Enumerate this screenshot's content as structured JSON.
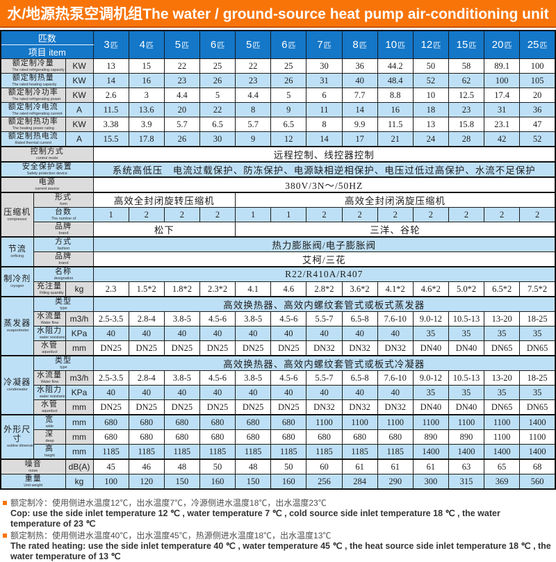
{
  "title": "水/地源热泵空调机组The water / ground-source heat pump air-conditioning unit",
  "colors": {
    "title_bg": "#f87409",
    "header_bg": "#1477c8",
    "row_shade_bg": "#bee0f6",
    "label_bg": "#dcdcdc",
    "accent_orange": "#f87409"
  },
  "header": {
    "corner_top": "匹数",
    "corner_bottom": "项目 item",
    "columns": [
      "3匹",
      "4匹",
      "5匹",
      "6匹",
      "5匹",
      "6匹",
      "7匹",
      "8匹",
      "10匹",
      "12匹",
      "15匹",
      "20匹",
      "25匹"
    ]
  },
  "rows": [
    {
      "label": {
        "zh": "额定制冷量",
        "en": "The rated refrigerating capacity"
      },
      "layout": "wide",
      "unit": "KW",
      "shade": false,
      "cells": [
        "13",
        "15",
        "22",
        "25",
        "22",
        "25",
        "30",
        "36",
        "44.2",
        "50",
        "58",
        "89.1",
        "100"
      ]
    },
    {
      "label": {
        "zh": "额定制热量",
        "en": "The rated heating capacity"
      },
      "layout": "wide",
      "unit": "KW",
      "shade": true,
      "cells": [
        "14",
        "16",
        "23",
        "26",
        "23",
        "26",
        "31",
        "40",
        "48.4",
        "52",
        "62",
        "100",
        "105"
      ]
    },
    {
      "label": {
        "zh": "额定制冷功率",
        "en": "The rated refrigerating power"
      },
      "layout": "wide",
      "unit": "KW",
      "shade": false,
      "cells": [
        "2.6",
        "3",
        "4.4",
        "5",
        "4.4",
        "5",
        "6",
        "7.7",
        "8.8",
        "10",
        "12.5",
        "17.4",
        "20"
      ]
    },
    {
      "label": {
        "zh": "额定制冷电流",
        "en": "The rated refrigerating current"
      },
      "layout": "wide",
      "unit": "A",
      "shade": true,
      "cells": [
        "11.5",
        "13.6",
        "20",
        "22",
        "8",
        "9",
        "11",
        "14",
        "16",
        "18",
        "23",
        "31",
        "36"
      ]
    },
    {
      "label": {
        "zh": "额定制热功率",
        "en": "The heating power rating"
      },
      "layout": "wide",
      "unit": "KW",
      "shade": false,
      "cells": [
        "3.38",
        "3.9",
        "5.7",
        "6.5",
        "5.7",
        "6.5",
        "8",
        "9.9",
        "11.5",
        "13",
        "15.8",
        "23.1",
        "47"
      ]
    },
    {
      "label": {
        "zh": "额定制热电流",
        "en": "Rated thermal current"
      },
      "layout": "wide",
      "unit": "A",
      "shade": true,
      "cells": [
        "15.5",
        "17.8",
        "26",
        "30",
        "9",
        "12",
        "14",
        "17",
        "21",
        "24",
        "28",
        "42",
        "52"
      ]
    },
    {
      "label": {
        "zh": "控制方式",
        "en": "control mode"
      },
      "layout": "full",
      "shade": false,
      "spans": [
        {
          "text": "远程控制、线控器控制",
          "cols": 13
        }
      ]
    },
    {
      "label": {
        "zh": "安全保护装置",
        "en": "Safety protection device"
      },
      "layout": "full",
      "shade": true,
      "spans": [
        {
          "text": "系统高低压　电流过载保护、防冻保护、电源缺相逆相保护、电压过低过高保护、水流不足保护",
          "cols": 13
        }
      ]
    },
    {
      "label": {
        "zh": "电源",
        "en": "current source"
      },
      "layout": "full",
      "shade": false,
      "spans": [
        {
          "text": "380V/3N～/50HZ",
          "cols": 13
        }
      ]
    },
    {
      "group": {
        "zh": "压缩机",
        "en": "compressor",
        "rows": 3
      },
      "label": {
        "zh": "形式",
        "en": "form"
      },
      "layout": "subwide",
      "shade": false,
      "spans": [
        {
          "text": "高效全封闭旋转压缩机",
          "cols": 4
        },
        {
          "text": "高效全封闭涡旋压缩机",
          "cols": 9
        }
      ]
    },
    {
      "label": {
        "zh": "台数",
        "en": "The number of"
      },
      "layout": "subwide",
      "shade": true,
      "cells": [
        "1",
        "2",
        "2",
        "2",
        "1",
        "1",
        "2",
        "2",
        "2",
        "2",
        "2",
        "2",
        "2"
      ]
    },
    {
      "label": {
        "zh": "品牌",
        "en": "brand"
      },
      "layout": "subwide",
      "shade": false,
      "spans": [
        {
          "text": "松下",
          "cols": 4
        },
        {
          "text": "三洋、谷轮",
          "cols": 9
        }
      ]
    },
    {
      "group": {
        "zh": "节流",
        "en": "orificing",
        "rows": 2
      },
      "label": {
        "zh": "方式",
        "en": "fashion"
      },
      "layout": "subwide",
      "shade": true,
      "spans": [
        {
          "text": "热力膨胀阀/电子膨胀阀",
          "cols": 13
        }
      ]
    },
    {
      "label": {
        "zh": "品牌",
        "en": "brand"
      },
      "layout": "subwide",
      "shade": false,
      "spans": [
        {
          "text": "艾柯/三花",
          "cols": 13
        }
      ]
    },
    {
      "group": {
        "zh": "制冷剂",
        "en": "cryogen",
        "rows": 2
      },
      "label": {
        "zh": "名称",
        "en": "designation"
      },
      "layout": "subwide",
      "shade": true,
      "spans": [
        {
          "text": "R22/R410A/R407",
          "cols": 13
        }
      ]
    },
    {
      "label": {
        "zh": "充注量",
        "en": "Filling quantity"
      },
      "layout": "sub",
      "unit": "kg",
      "shade": false,
      "cells": [
        "2.3",
        "1.5*2",
        "1.8*2",
        "2.3*2",
        "4.1",
        "4.6",
        "2.8*2",
        "3.6*2",
        "4.1*2",
        "4.6*2",
        "5.0*2",
        "6.5*2",
        "7.5*2"
      ]
    },
    {
      "group": {
        "zh": "蒸发器",
        "en": "evaporimeter",
        "rows": 4
      },
      "label": {
        "zh": "类型",
        "en": "type"
      },
      "layout": "subwide",
      "shade": true,
      "spans": [
        {
          "text": "高效换热器、高效内螺纹套管式或板式蒸发器",
          "cols": 13
        }
      ]
    },
    {
      "label": {
        "zh": "水流量",
        "en": "Water flow"
      },
      "layout": "sub",
      "unit": "m3/h",
      "shade": false,
      "cells": [
        "2.5-3.5",
        "2.8-4",
        "3.8-5",
        "4.5-6",
        "3.8-5",
        "4.5-6",
        "5.5-7",
        "6.5-8",
        "7.6-10",
        "9.0-12",
        "10.5-13",
        "13-20",
        "18-25"
      ]
    },
    {
      "label": {
        "zh": "水阻力",
        "en": "water resistance"
      },
      "layout": "sub",
      "unit": "KPa",
      "shade": true,
      "cells": [
        "40",
        "40",
        "40",
        "40",
        "40",
        "40",
        "40",
        "40",
        "40",
        "35",
        "35",
        "35",
        "35"
      ]
    },
    {
      "label": {
        "zh": "水管",
        "en": "aqueduct"
      },
      "layout": "sub",
      "unit": "mm",
      "shade": false,
      "cells": [
        "DN25",
        "DN25",
        "DN25",
        "DN25",
        "DN25",
        "DN25",
        "DN32",
        "DN32",
        "DN32",
        "DN40",
        "DN40",
        "DN65",
        "DN65"
      ]
    },
    {
      "group": {
        "zh": "冷凝器",
        "en": "condensator",
        "rows": 4
      },
      "label": {
        "zh": "类型",
        "en": "type"
      },
      "layout": "subwide",
      "shade": true,
      "spans": [
        {
          "text": "高效换热器、高效内螺纹套管式或板式冷凝器",
          "cols": 13
        }
      ]
    },
    {
      "label": {
        "zh": "水流量",
        "en": "Water flow"
      },
      "layout": "sub",
      "unit": "m3/h",
      "shade": false,
      "cells": [
        "2.5-3.5",
        "2.8-4",
        "3.8-5",
        "4.5-6",
        "3.8-5",
        "4.5-6",
        "5.5-7",
        "6.5-8",
        "7.6-10",
        "9.0-12",
        "10.5-13",
        "13-20",
        "18-25"
      ]
    },
    {
      "label": {
        "zh": "水阻力",
        "en": "water resistance"
      },
      "layout": "sub",
      "unit": "KPa",
      "shade": true,
      "cells": [
        "40",
        "40",
        "40",
        "40",
        "40",
        "40",
        "40",
        "40",
        "40",
        "35",
        "35",
        "35",
        "35"
      ]
    },
    {
      "label": {
        "zh": "水管",
        "en": "aqueduct"
      },
      "layout": "sub",
      "unit": "mm",
      "shade": false,
      "cells": [
        "DN25",
        "DN25",
        "DN25",
        "DN25",
        "DN25",
        "DN25",
        "DN32",
        "DN32",
        "DN32",
        "DN40",
        "DN40",
        "DN65",
        "DN65"
      ]
    },
    {
      "group": {
        "zh": "外形尺寸",
        "en": "outline dimension",
        "rows": 3
      },
      "label": {
        "zh": "宽",
        "en": "wide"
      },
      "layout": "sub",
      "unit": "mm",
      "shade": true,
      "cells": [
        "680",
        "680",
        "680",
        "680",
        "680",
        "680",
        "1100",
        "1100",
        "1100",
        "1100",
        "1100",
        "1100",
        "1400"
      ]
    },
    {
      "label": {
        "zh": "深",
        "en": "deep"
      },
      "layout": "sub",
      "unit": "mm",
      "shade": false,
      "cells": [
        "680",
        "680",
        "680",
        "680",
        "680",
        "680",
        "680",
        "680",
        "680",
        "890",
        "890",
        "1100",
        "1100"
      ]
    },
    {
      "label": {
        "zh": "高",
        "en": "height"
      },
      "layout": "sub",
      "unit": "mm",
      "shade": true,
      "cells": [
        "1185",
        "1185",
        "1185",
        "1185",
        "1185",
        "1185",
        "1185",
        "1185",
        "1185",
        "1400",
        "1400",
        "1400",
        "1400"
      ]
    },
    {
      "label": {
        "zh": "噪音",
        "en": "noise"
      },
      "layout": "wide",
      "unit": "dB(A)",
      "shade": false,
      "cells": [
        "45",
        "46",
        "48",
        "50",
        "48",
        "50",
        "60",
        "61",
        "61",
        "61",
        "63",
        "65",
        "68"
      ]
    },
    {
      "label": {
        "zh": "重量",
        "en": "Unit weight"
      },
      "layout": "wide",
      "unit": "kg",
      "shade": true,
      "cells": [
        "100",
        "120",
        "150",
        "160",
        "150",
        "160",
        "256",
        "284",
        "290",
        "300",
        "315",
        "369",
        "560"
      ]
    }
  ],
  "footnotes": [
    {
      "type": "zh",
      "bullet": true,
      "text": "额定制冷：使用侧进水温度12℃，出水温度7℃，冷源侧进水温度18℃，出水温度23℃"
    },
    {
      "type": "en",
      "bullet": false,
      "text": "Cop: use the side inlet temperature 12 ℃ , water temperature 7 ℃ , cold source side inlet temperature 18 ℃ , the water temperature of 23 ℃"
    },
    {
      "type": "zh",
      "bullet": true,
      "text": "额定制热：使用侧进水温度40℃，出水温度45℃，热源侧进水温度18℃，出水温度13℃"
    },
    {
      "type": "en",
      "bullet": false,
      "text": "The rated heating: use the side inlet temperature 40 ℃ , water temperature 45 ℃ , the heat source side inlet temperature 18 ℃ , the water temperature of 13 ℃"
    }
  ]
}
